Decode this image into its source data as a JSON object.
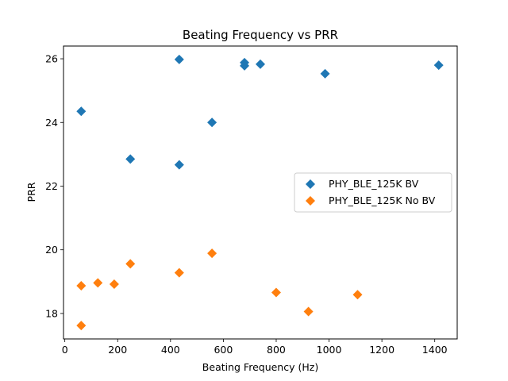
{
  "chart_data": {
    "type": "scatter",
    "title": "Beating Frequency vs PRR",
    "xlabel": "Beating Frequency (Hz)",
    "ylabel": "PRR",
    "xlim": [
      -5,
      1485
    ],
    "ylim": [
      17.2,
      26.4
    ],
    "x_ticks": [
      0,
      200,
      400,
      600,
      800,
      1000,
      1200,
      1400
    ],
    "y_ticks": [
      18,
      20,
      22,
      24,
      26
    ],
    "grid": false,
    "legend_position": "center-right",
    "marker": "diamond",
    "series": [
      {
        "name": "PHY_BLE_125K BV",
        "color": "#1f77b4",
        "points": [
          {
            "x": 62,
            "y": 24.35
          },
          {
            "x": 248,
            "y": 22.85
          },
          {
            "x": 433,
            "y": 25.98
          },
          {
            "x": 433,
            "y": 22.67
          },
          {
            "x": 557,
            "y": 24.0
          },
          {
            "x": 680,
            "y": 25.88
          },
          {
            "x": 680,
            "y": 25.78
          },
          {
            "x": 740,
            "y": 25.83
          },
          {
            "x": 985,
            "y": 25.53
          },
          {
            "x": 1415,
            "y": 25.8
          }
        ]
      },
      {
        "name": "PHY_BLE_125K No BV",
        "color": "#ff7f0e",
        "points": [
          {
            "x": 62,
            "y": 18.87
          },
          {
            "x": 62,
            "y": 17.62
          },
          {
            "x": 125,
            "y": 18.96
          },
          {
            "x": 187,
            "y": 18.92
          },
          {
            "x": 248,
            "y": 19.56
          },
          {
            "x": 433,
            "y": 19.28
          },
          {
            "x": 557,
            "y": 19.89
          },
          {
            "x": 800,
            "y": 18.66
          },
          {
            "x": 922,
            "y": 18.06
          },
          {
            "x": 1108,
            "y": 18.59
          }
        ]
      }
    ]
  }
}
